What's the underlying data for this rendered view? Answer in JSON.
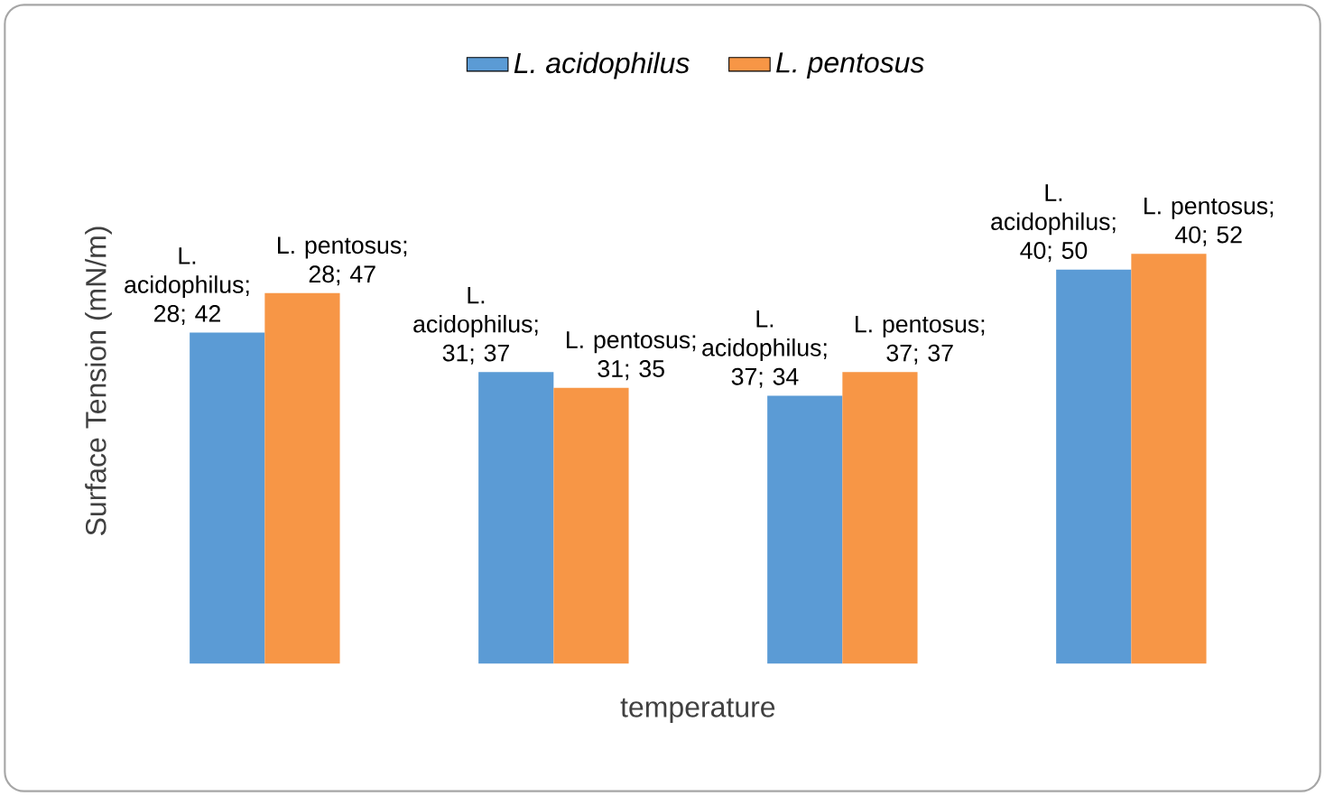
{
  "chart_data": {
    "type": "bar",
    "xlabel": "temperature",
    "ylabel": "Surface Tension (mN/m)",
    "categories": [
      null,
      null,
      null,
      null
    ],
    "legend": "top",
    "series": [
      {
        "name": "L. acidophilus",
        "color": "#5b9bd5",
        "values": [
          42,
          37,
          34,
          50
        ],
        "value_labels": [
          "L. acidophilus; 28; 42",
          "L. acidophilus; 31; 37",
          "L. acidophilus; 37; 34",
          "L. acidophilus; 40; 50"
        ]
      },
      {
        "name": "L. pentosus",
        "color": "#f79646",
        "values": [
          47,
          35,
          37,
          52
        ],
        "value_labels": [
          "L. pentosus; 28; 47",
          "L. pentosus; 31; 35",
          "L. pentosus; 37; 37",
          "L. pentosus; 40; 52"
        ]
      }
    ]
  }
}
